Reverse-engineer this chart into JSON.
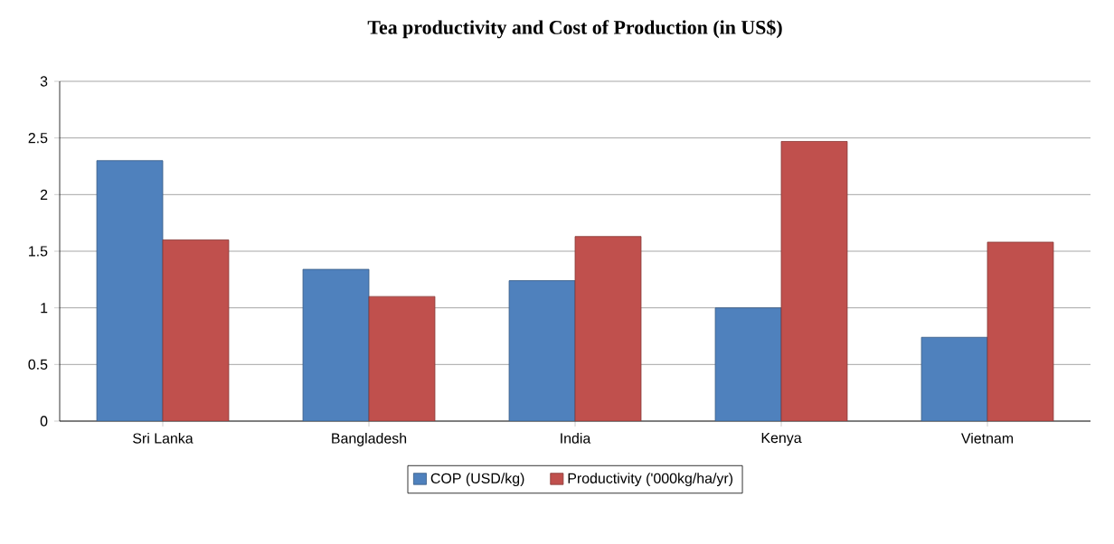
{
  "chart_data": {
    "type": "bar",
    "title": "Tea productivity and Cost of Production (in US$)",
    "categories": [
      "Sri Lanka",
      "Bangladesh",
      "India",
      "Kenya",
      "Vietnam"
    ],
    "series": [
      {
        "name": "COP (USD/kg)",
        "color": "#4f81bd",
        "values": [
          2.3,
          1.34,
          1.24,
          1.0,
          0.74
        ]
      },
      {
        "name": "Productivity ('000kg/ha/yr)",
        "color": "#c0504d",
        "values": [
          1.6,
          1.1,
          1.63,
          2.47,
          1.58
        ]
      }
    ],
    "ylim": [
      0,
      3
    ],
    "yticks": [
      0,
      0.5,
      1,
      1.5,
      2,
      2.5,
      3
    ],
    "grid": "y",
    "legend": "bottom"
  }
}
